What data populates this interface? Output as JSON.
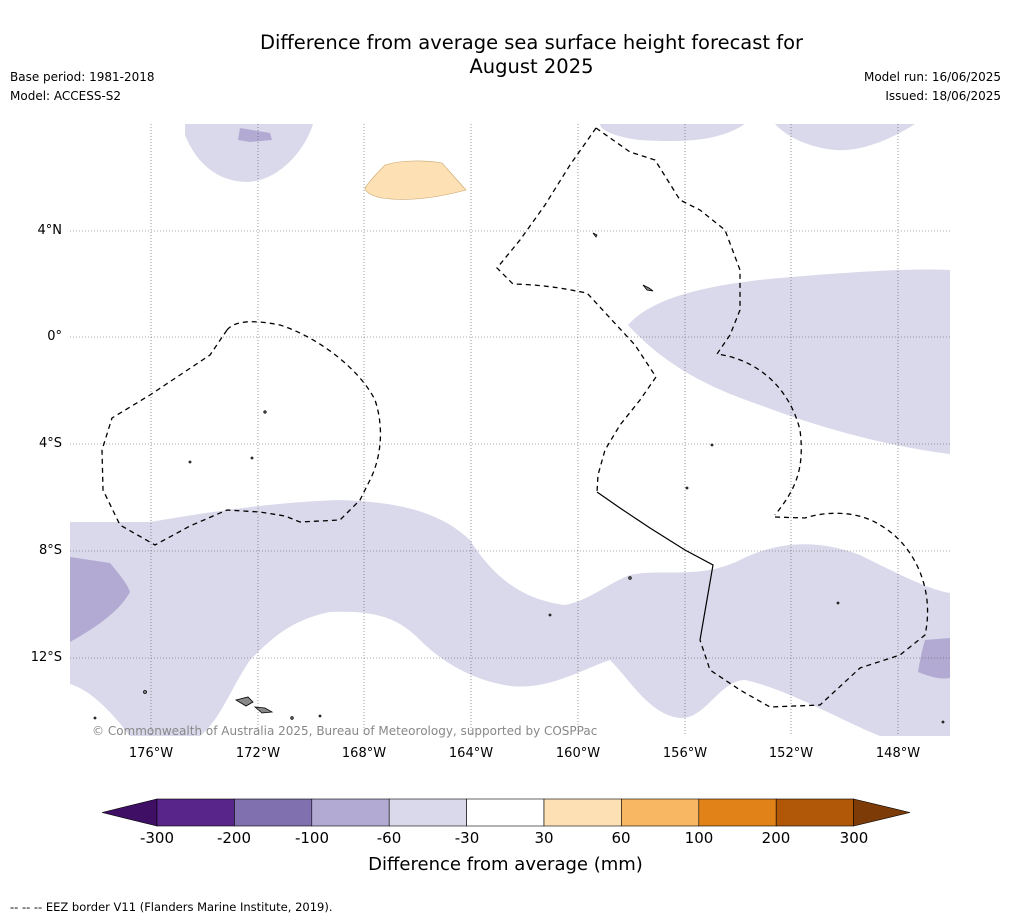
{
  "title_line1": "Difference from average sea surface height forecast for",
  "title_line2": "August 2025",
  "base_period": "Base period: 1981-2018",
  "model": "Model: ACCESS-S2",
  "model_run": "Model run: 16/06/2025",
  "issued": "Issued: 18/06/2025",
  "lat_labels": [
    "4°N",
    "0°",
    "4°S",
    "8°S",
    "12°S"
  ],
  "lon_labels": [
    "176°W",
    "172°W",
    "168°W",
    "164°W",
    "160°W",
    "156°W",
    "152°W",
    "148°W"
  ],
  "copyright": "© Commonwealth of Australia 2025, Bureau of Meteorology, supported by COSPPac",
  "colorbar": {
    "ticks": [
      "-300",
      "-200",
      "-100",
      "-60",
      "-30",
      "30",
      "60",
      "100",
      "200",
      "300"
    ],
    "colors": [
      "#3f0f65",
      "#58268a",
      "#8070b0",
      "#b2aad3",
      "#d9d9eb",
      "#ffffff",
      "#fde0b4",
      "#f8b762",
      "#e08218",
      "#b15708",
      "#7d3b07"
    ],
    "title": "Difference from average (mm)"
  },
  "footnote": "-- -- -- EEZ border V11 (Flanders Marine Institute, 2019).",
  "legend_colors": {
    "light_purple": "#d9d9eb",
    "mid_purple": "#b2aad3",
    "light_orange": "#fde0b4"
  }
}
